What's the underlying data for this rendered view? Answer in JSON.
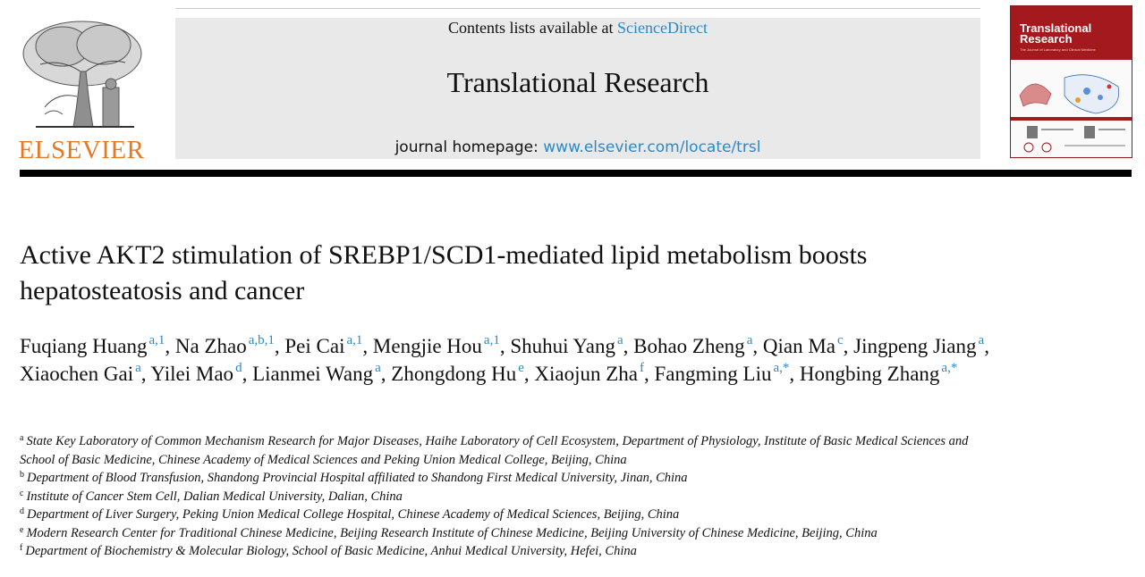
{
  "header": {
    "publisher_logo_text": "ELSEVIER",
    "contents_prefix": "Contents lists available at",
    "contents_link": "ScienceDirect",
    "journal_title": "Translational Research",
    "homepage_prefix": "journal homepage:",
    "homepage_link": "www.elsevier.com/locate/trsl",
    "cover": {
      "title_line1": "Translational",
      "title_line2": "Research",
      "subtitle": "The Journal of Laboratory and Clinical Medicine"
    }
  },
  "article": {
    "title": "Active AKT2 stimulation of SREBP1/SCD1-mediated lipid metabolism boosts hepatosteatosis and cancer",
    "authors": [
      {
        "name": "Fuqiang Huang",
        "sup": "a,1"
      },
      {
        "name": "Na Zhao",
        "sup": "a,b,1"
      },
      {
        "name": "Pei Cai",
        "sup": "a,1"
      },
      {
        "name": "Mengjie Hou",
        "sup": "a,1"
      },
      {
        "name": "Shuhui Yang",
        "sup": "a"
      },
      {
        "name": "Bohao Zheng",
        "sup": "a"
      },
      {
        "name": "Qian Ma",
        "sup": "c"
      },
      {
        "name": "Jingpeng Jiang",
        "sup": "a"
      },
      {
        "name": "Xiaochen Gai",
        "sup": "a"
      },
      {
        "name": "Yilei Mao",
        "sup": "d"
      },
      {
        "name": "Lianmei Wang",
        "sup": "a"
      },
      {
        "name": "Zhongdong Hu",
        "sup": "e"
      },
      {
        "name": "Xiaojun Zha",
        "sup": "f"
      },
      {
        "name": "Fangming Liu",
        "sup": "a,*"
      },
      {
        "name": "Hongbing Zhang",
        "sup": "a,*"
      }
    ],
    "affiliations": [
      {
        "key": "a",
        "text": "State Key Laboratory of Common Mechanism Research for Major Diseases, Haihe Laboratory of Cell Ecosystem, Department of Physiology, Institute of Basic Medical Sciences and School of Basic Medicine, Chinese Academy of Medical Sciences and Peking Union Medical College, Beijing, China"
      },
      {
        "key": "b",
        "text": "Department of Blood Transfusion, Shandong Provincial Hospital affiliated to Shandong First Medical University, Jinan, China"
      },
      {
        "key": "c",
        "text": "Institute of Cancer Stem Cell, Dalian Medical University, Dalian, China"
      },
      {
        "key": "d",
        "text": "Department of Liver Surgery, Peking Union Medical College Hospital, Chinese Academy of Medical Sciences, Beijing, China"
      },
      {
        "key": "e",
        "text": "Modern Research Center for Traditional Chinese Medicine, Beijing Research Institute of Chinese Medicine, Beijing University of Chinese Medicine, Beijing, China"
      },
      {
        "key": "f",
        "text": "Department of Biochemistry & Molecular Biology, School of Basic Medicine, Anhui Medical University, Hefei, China"
      }
    ]
  },
  "colors": {
    "link": "#2a8ac6",
    "elsevier_orange": "#e87722",
    "cover_red": "#a3191d",
    "banner_gray": "#e9e9e9"
  }
}
